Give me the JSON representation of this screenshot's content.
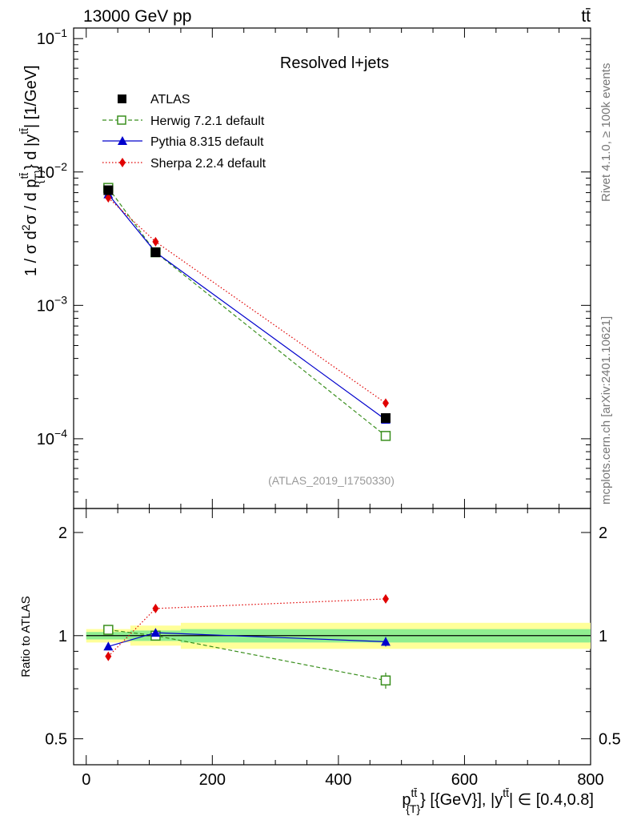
{
  "header": {
    "left_label": "13000 GeV pp",
    "right_label": "tt̄",
    "right_side_label": "Rivet 4.1.0, ≥ 100k events",
    "right_side_label2": "mcplots.cern.ch [arXiv:2401.10621]"
  },
  "chart_data": [
    {
      "type": "line",
      "panel": "main",
      "title": "Resolved l+jets",
      "analysis_label": "(ATLAS_2019_I1750330)",
      "ylabel": "1 / σ d²σ / d p_{T}^{tt̄} d |y^{tt̄}| [1/GeV]",
      "yscale": "log",
      "ylim": [
        3e-05,
        0.12
      ],
      "xlim": [
        -20,
        800
      ],
      "y_ticks": [
        {
          "value": 0.1,
          "base": "10",
          "exp": "−1"
        },
        {
          "value": 0.01,
          "base": "10",
          "exp": "−2"
        },
        {
          "value": 0.001,
          "base": "10",
          "exp": "−3"
        },
        {
          "value": 0.0001,
          "base": "10",
          "exp": "−4"
        }
      ],
      "x": [
        35,
        110,
        475
      ],
      "series": [
        {
          "name": "ATLAS",
          "style": "data",
          "color": "#000000",
          "marker": "square-filled",
          "values": [
            0.0073,
            0.0025,
            0.000143
          ],
          "err_low": [
            0.0002,
            8e-05,
            6e-06
          ],
          "err_high": [
            0.0002,
            8e-05,
            6e-06
          ]
        },
        {
          "name": "Herwig 7.2.1 default",
          "color": "#3a8f1e",
          "marker": "square-open",
          "dash": "dashed",
          "values": [
            0.0076,
            0.0025,
            0.000105
          ]
        },
        {
          "name": "Pythia 8.315 default",
          "color": "#0000cc",
          "marker": "triangle",
          "dash": "solid",
          "values": [
            0.0068,
            0.0025,
            0.000139
          ]
        },
        {
          "name": "Sherpa 2.2.4 default",
          "color": "#e00000",
          "marker": "diamond",
          "dash": "dotted",
          "values": [
            0.0064,
            0.003,
            0.000185
          ]
        }
      ]
    },
    {
      "type": "line",
      "panel": "ratio",
      "ylabel": "Ratio to ATLAS",
      "xlabel": "p_{T}^{tt̄} [{GeV}], |y^{tt̄}| ∈ [0.4,0.8]",
      "yscale": "log",
      "ylim": [
        0.42,
        2.35
      ],
      "xlim": [
        -20,
        800
      ],
      "y_ticks": [
        {
          "value": 2,
          "label": "2"
        },
        {
          "value": 1,
          "label": "1"
        },
        {
          "value": 0.5,
          "label": "0.5"
        }
      ],
      "x_ticks": [
        0,
        200,
        400,
        600,
        800
      ],
      "bands": {
        "edges": [
          0,
          70,
          150,
          800
        ],
        "inner_low": [
          0.975,
          0.965,
          0.955
        ],
        "inner_high": [
          1.025,
          1.035,
          1.045
        ],
        "outer_low": [
          0.955,
          0.935,
          0.915
        ],
        "outer_high": [
          1.045,
          1.07,
          1.09
        ],
        "inner_color": "#90ee90",
        "outer_color": "#ffff99"
      },
      "x": [
        35,
        110,
        475
      ],
      "series": [
        {
          "name": "Herwig 7.2.1 default",
          "color": "#3a8f1e",
          "marker": "square-open",
          "dash": "dashed",
          "values": [
            1.04,
            1.0,
            0.74
          ],
          "err_low": [
            0,
            0.02,
            0.04
          ],
          "err_high": [
            0,
            0.02,
            0.04
          ]
        },
        {
          "name": "Pythia 8.315 default",
          "color": "#0000cc",
          "marker": "triangle",
          "dash": "solid",
          "values": [
            0.93,
            1.02,
            0.96
          ],
          "err_low": [
            0,
            0.02,
            0.03
          ],
          "err_high": [
            0,
            0.02,
            0.03
          ]
        },
        {
          "name": "Sherpa 2.2.4 default",
          "color": "#e00000",
          "marker": "diamond",
          "dash": "dotted",
          "values": [
            0.87,
            1.2,
            1.28
          ]
        }
      ]
    }
  ]
}
